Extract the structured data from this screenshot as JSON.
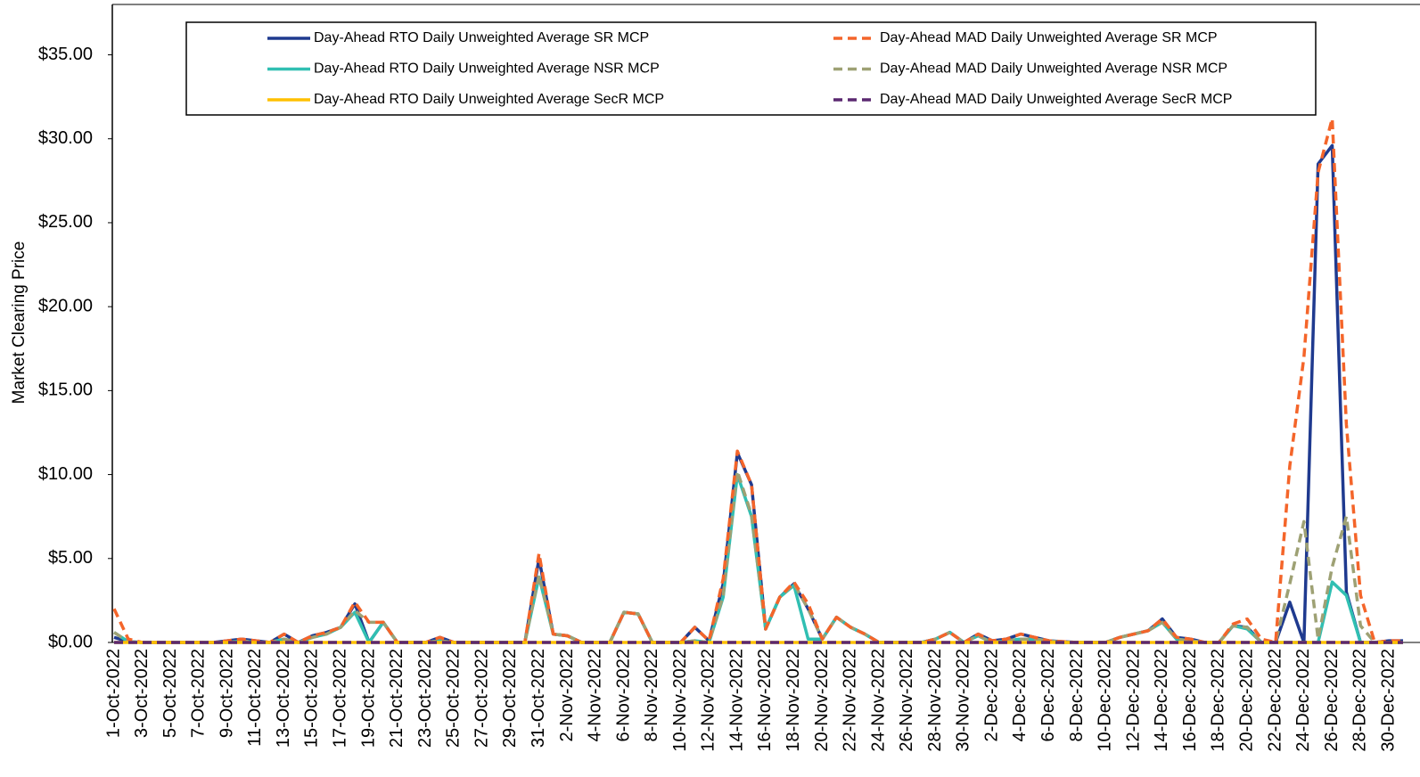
{
  "chart_data": {
    "type": "line",
    "y_label": "Market Clearing Price",
    "ylim": [
      0,
      38
    ],
    "yticks": [
      {
        "value": 0,
        "label": "$0.00"
      },
      {
        "value": 5,
        "label": "$5.00"
      },
      {
        "value": 10,
        "label": "$10.00"
      },
      {
        "value": 15,
        "label": "$15.00"
      },
      {
        "value": 20,
        "label": "$20.00"
      },
      {
        "value": 25,
        "label": "$25.00"
      },
      {
        "value": 30,
        "label": "$30.00"
      },
      {
        "value": 35,
        "label": "$35.00"
      }
    ],
    "categories": [
      "1-Oct-2022",
      null,
      "3-Oct-2022",
      null,
      "5-Oct-2022",
      null,
      "7-Oct-2022",
      null,
      "9-Oct-2022",
      null,
      "11-Oct-2022",
      null,
      "13-Oct-2022",
      null,
      "15-Oct-2022",
      null,
      "17-Oct-2022",
      null,
      "19-Oct-2022",
      null,
      "21-Oct-2022",
      null,
      "23-Oct-2022",
      null,
      "25-Oct-2022",
      null,
      "27-Oct-2022",
      null,
      "29-Oct-2022",
      null,
      "31-Oct-2022",
      null,
      "2-Nov-2022",
      null,
      "4-Nov-2022",
      null,
      "6-Nov-2022",
      null,
      "8-Nov-2022",
      null,
      "10-Nov-2022",
      null,
      "12-Nov-2022",
      null,
      "14-Nov-2022",
      null,
      "16-Nov-2022",
      null,
      "18-Nov-2022",
      null,
      "20-Nov-2022",
      null,
      "22-Nov-2022",
      null,
      "24-Nov-2022",
      null,
      "26-Nov-2022",
      null,
      "28-Nov-2022",
      null,
      "30-Nov-2022",
      null,
      "2-Dec-2022",
      null,
      "4-Dec-2022",
      null,
      "6-Dec-2022",
      null,
      "8-Dec-2022",
      null,
      "10-Dec-2022",
      null,
      "12-Dec-2022",
      null,
      "14-Dec-2022",
      null,
      "16-Dec-2022",
      null,
      "18-Dec-2022",
      null,
      "20-Dec-2022",
      null,
      "22-Dec-2022",
      null,
      "24-Dec-2022",
      null,
      "26-Dec-2022",
      null,
      "28-Dec-2022",
      null,
      "30-Dec-2022",
      null
    ],
    "series": [
      {
        "name": "Day-Ahead RTO Daily Unweighted Average SR MCP",
        "color": "#1f3a8f",
        "style": "solid",
        "values": [
          0.3,
          0.05,
          0,
          0,
          0,
          0,
          0,
          0,
          0.1,
          0.2,
          0.1,
          0,
          0.5,
          0,
          0.4,
          0.6,
          0.9,
          2.3,
          0,
          1.2,
          0,
          0,
          0,
          0.3,
          0,
          0,
          0,
          0,
          0,
          0,
          5.0,
          0.5,
          0.4,
          0,
          0,
          0,
          1.8,
          1.7,
          0,
          0,
          0,
          0.9,
          0.1,
          3.5,
          11.3,
          9.4,
          0.8,
          2.7,
          3.5,
          2.0,
          0.2,
          1.5,
          0.9,
          0.5,
          0,
          0,
          0,
          0,
          0.2,
          0.6,
          0,
          0.5,
          0.1,
          0.2,
          0.5,
          0.3,
          0.1,
          0.05,
          0,
          0,
          0,
          0.3,
          0.5,
          0.7,
          1.4,
          0.3,
          0.2,
          0,
          0,
          1.0,
          0.9,
          0,
          0,
          2.4,
          0,
          28.5,
          29.6,
          3.0,
          0,
          0,
          0.1,
          0.1
        ]
      },
      {
        "name": "Day-Ahead MAD Daily Unweighted Average SR MCP",
        "color": "#f4652a",
        "style": "dashed",
        "values": [
          2.0,
          0.2,
          0,
          0,
          0,
          0,
          0,
          0,
          0.1,
          0.2,
          0.1,
          0,
          0.5,
          0,
          0.4,
          0.6,
          0.9,
          2.4,
          1.2,
          1.2,
          0,
          0,
          0,
          0.3,
          0,
          0,
          0,
          0,
          0,
          0,
          5.3,
          0.5,
          0.4,
          0,
          0,
          0,
          1.8,
          1.7,
          0,
          0,
          0,
          0.9,
          0.1,
          3.8,
          11.4,
          9.4,
          0.8,
          2.7,
          3.6,
          2.3,
          0.2,
          1.5,
          0.9,
          0.5,
          0,
          0,
          0,
          0,
          0.2,
          0.6,
          0,
          0.5,
          0.1,
          0.2,
          0.5,
          0.3,
          0.1,
          0.05,
          0,
          0,
          0,
          0.3,
          0.5,
          0.7,
          1.4,
          0.3,
          0.2,
          0,
          0,
          1.1,
          1.4,
          0.2,
          0,
          10.5,
          17.0,
          28.0,
          31.2,
          13.0,
          2.8,
          0,
          0.1,
          0.1
        ]
      },
      {
        "name": "Day-Ahead RTO Daily Unweighted Average NSR MCP",
        "color": "#30bfb2",
        "style": "solid",
        "values": [
          0.6,
          0.05,
          0,
          0,
          0,
          0,
          0,
          0,
          0,
          0.1,
          0,
          0,
          0.2,
          0,
          0.3,
          0.5,
          0.9,
          1.8,
          0,
          1.2,
          0,
          0,
          0,
          0.1,
          0,
          0,
          0,
          0,
          0,
          0,
          3.9,
          0.5,
          0.4,
          0,
          0,
          0,
          1.8,
          1.7,
          0,
          0,
          0,
          0.1,
          0,
          2.7,
          10.0,
          7.5,
          0.8,
          2.7,
          3.4,
          0.2,
          0.2,
          1.5,
          0.9,
          0.5,
          0,
          0,
          0,
          0,
          0.2,
          0.6,
          0,
          0.4,
          0,
          0.1,
          0.2,
          0.2,
          0.1,
          0,
          0,
          0,
          0,
          0.3,
          0.5,
          0.7,
          1.2,
          0.2,
          0.1,
          0,
          0,
          1.0,
          0.8,
          0,
          0,
          0,
          0,
          0,
          3.6,
          2.8,
          0,
          0,
          0,
          0
        ]
      },
      {
        "name": "Day-Ahead MAD Daily Unweighted Average NSR MCP",
        "color": "#9ea174",
        "style": "dashed",
        "values": [
          0.6,
          0.05,
          0,
          0,
          0,
          0,
          0,
          0,
          0,
          0.1,
          0,
          0,
          0.2,
          0,
          0.3,
          0.5,
          0.9,
          1.9,
          1.2,
          1.2,
          0,
          0,
          0,
          0.1,
          0,
          0,
          0,
          0,
          0,
          0,
          4.0,
          0.5,
          0.4,
          0,
          0,
          0,
          1.8,
          1.7,
          0,
          0,
          0,
          0.1,
          0,
          2.8,
          10.2,
          7.6,
          0.8,
          2.7,
          3.5,
          2.0,
          0.2,
          1.5,
          0.9,
          0.5,
          0,
          0,
          0,
          0,
          0.2,
          0.6,
          0,
          0.4,
          0,
          0.1,
          0.2,
          0.2,
          0.1,
          0,
          0,
          0,
          0,
          0.3,
          0.5,
          0.7,
          1.2,
          0.2,
          0.1,
          0,
          0,
          1.0,
          0.9,
          0,
          0,
          3.5,
          7.2,
          0.2,
          4.5,
          7.5,
          1.0,
          0,
          0,
          0
        ]
      },
      {
        "name": "Day-Ahead RTO Daily Unweighted Average SecR MCP",
        "color": "#ffc000",
        "style": "solid",
        "values": [
          0,
          0,
          0,
          0,
          0,
          0,
          0,
          0,
          0,
          0,
          0,
          0,
          0,
          0,
          0,
          0,
          0,
          0,
          0,
          0,
          0,
          0,
          0,
          0,
          0,
          0,
          0,
          0,
          0,
          0,
          0,
          0,
          0,
          0,
          0,
          0,
          0,
          0,
          0,
          0,
          0,
          0,
          0,
          0,
          0,
          0,
          0,
          0,
          0,
          0,
          0,
          0,
          0,
          0,
          0,
          0,
          0,
          0,
          0,
          0,
          0,
          0,
          0,
          0,
          0,
          0,
          0,
          0,
          0,
          0,
          0,
          0,
          0,
          0,
          0,
          0,
          0,
          0,
          0,
          0,
          0,
          0,
          0,
          0,
          0,
          0,
          0,
          0,
          0,
          0,
          0,
          0
        ]
      },
      {
        "name": "Day-Ahead MAD Daily Unweighted Average SecR MCP",
        "color": "#5b2870",
        "style": "dashed",
        "values": [
          0,
          0,
          0,
          0,
          0,
          0,
          0,
          0,
          0,
          0,
          0,
          0,
          0,
          0,
          0,
          0,
          0,
          0,
          0,
          0,
          0,
          0,
          0,
          0,
          0,
          0,
          0,
          0,
          0,
          0,
          0,
          0,
          0,
          0,
          0,
          0,
          0,
          0,
          0,
          0,
          0,
          0,
          0,
          0,
          0,
          0,
          0,
          0,
          0,
          0,
          0,
          0,
          0,
          0,
          0,
          0,
          0,
          0,
          0,
          0,
          0,
          0,
          0,
          0,
          0,
          0,
          0,
          0,
          0,
          0,
          0,
          0,
          0,
          0,
          0,
          0,
          0,
          0,
          0,
          0,
          0,
          0,
          0,
          0,
          0,
          0,
          0,
          0,
          0,
          0,
          0,
          0
        ]
      }
    ]
  }
}
